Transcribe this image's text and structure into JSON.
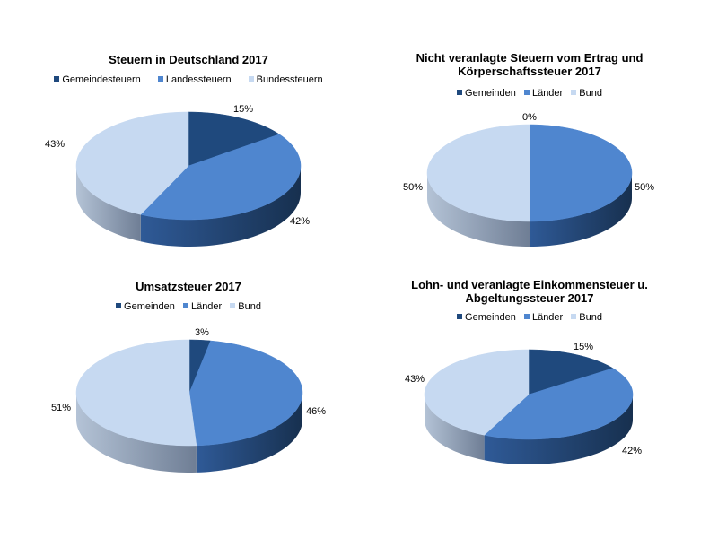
{
  "colors": {
    "gemeinden": "#1F497D",
    "laender": "#4F86CF",
    "bund": "#C6D9F1",
    "gemeinden_side": "#1A3459",
    "laender_side": "#1E3A66",
    "bund_side": "#8E9DB4"
  },
  "chart_data": [
    {
      "type": "pie",
      "title": "Steuern in Deutschland 2017",
      "categories": [
        "Gemeindesteuern",
        "Landessteuern",
        "Bundessteuern"
      ],
      "values": [
        15,
        42,
        43
      ],
      "labels": [
        "15%",
        "42%",
        "43%"
      ],
      "legend_position": "top",
      "style": "3d"
    },
    {
      "type": "pie",
      "title": "Nicht veranlagte Steuern vom Ertrag und Körperschaftssteuer 2017",
      "categories": [
        "Gemeinden",
        "Länder",
        "Bund"
      ],
      "values": [
        0,
        50,
        50
      ],
      "labels": [
        "0%",
        "50%",
        "50%"
      ],
      "legend_position": "top",
      "style": "3d"
    },
    {
      "type": "pie",
      "title": "Umsatzsteuer 2017",
      "categories": [
        "Gemeinden",
        "Länder",
        "Bund"
      ],
      "values": [
        3,
        46,
        51
      ],
      "labels": [
        "3%",
        "46%",
        "51%"
      ],
      "legend_position": "top",
      "style": "3d"
    },
    {
      "type": "pie",
      "title": "Lohn- und veranlagte Einkommensteuer u. Abgeltungssteuer 2017",
      "categories": [
        "Gemeinden",
        "Länder",
        "Bund"
      ],
      "values": [
        15,
        42,
        43
      ],
      "labels": [
        "15%",
        "42%",
        "43%"
      ],
      "legend_position": "top",
      "style": "3d"
    }
  ],
  "charts": [
    {
      "title_lines": [
        "Steuern in Deutschland 2017"
      ],
      "legend": [
        "Gemeindesteuern",
        "Landessteuern",
        "Bundessteuern"
      ],
      "labels": [
        "15%",
        "42%",
        "43%"
      ]
    },
    {
      "title_lines": [
        "Nicht veranlagte Steuern vom Ertrag und",
        "Körperschaftssteuer 2017"
      ],
      "legend": [
        "Gemeinden",
        "Länder",
        "Bund"
      ],
      "labels": [
        "0%",
        "50%",
        "50%"
      ]
    },
    {
      "title_lines": [
        "Umsatzsteuer 2017"
      ],
      "legend": [
        "Gemeinden",
        "Länder",
        "Bund"
      ],
      "labels": [
        "3%",
        "46%",
        "51%"
      ]
    },
    {
      "title_lines": [
        "Lohn- und veranlagte Einkommensteuer u.",
        "Abgeltungssteuer 2017"
      ],
      "legend": [
        "Gemeinden",
        "Länder",
        "Bund"
      ],
      "labels": [
        "15%",
        "42%",
        "43%"
      ]
    }
  ]
}
